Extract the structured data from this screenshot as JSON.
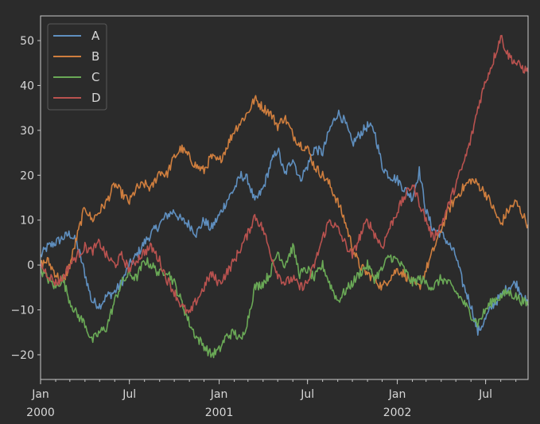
{
  "chart_data": {
    "type": "line",
    "title": "",
    "xlabel": "",
    "ylabel": "",
    "grid": false,
    "legend_position": "top-left",
    "x_range": [
      "2000-01-01",
      "2002-09-26"
    ],
    "ylim": [
      -25.5,
      55.5
    ],
    "y_ticks": [
      -20,
      -10,
      0,
      10,
      20,
      30,
      40,
      50
    ],
    "y_tick_labels": [
      "−20",
      "−10",
      "0",
      "10",
      "20",
      "30",
      "40",
      "50"
    ],
    "x_ticks_major": [
      {
        "date": "2000-01-01",
        "label": "Jan",
        "sub": "2000"
      },
      {
        "date": "2000-07-01",
        "label": "Jul",
        "sub": ""
      },
      {
        "date": "2001-01-01",
        "label": "Jan",
        "sub": "2001"
      },
      {
        "date": "2001-07-01",
        "label": "Jul",
        "sub": ""
      },
      {
        "date": "2002-01-01",
        "label": "Jan",
        "sub": "2002"
      },
      {
        "date": "2002-07-01",
        "label": "Jul",
        "sub": ""
      }
    ],
    "series": [
      {
        "name": "A",
        "color": "#5f8fbf",
        "points": [
          [
            "2000-01-01",
            2
          ],
          [
            "2000-01-15",
            4
          ],
          [
            "2000-02-01",
            5
          ],
          [
            "2000-02-15",
            6
          ],
          [
            "2000-03-01",
            7
          ],
          [
            "2000-03-15",
            5
          ],
          [
            "2000-04-01",
            -2
          ],
          [
            "2000-04-15",
            -8
          ],
          [
            "2000-05-01",
            -9
          ],
          [
            "2000-05-15",
            -7
          ],
          [
            "2000-06-01",
            -6
          ],
          [
            "2000-06-15",
            -4
          ],
          [
            "2000-07-01",
            0
          ],
          [
            "2000-07-15",
            2
          ],
          [
            "2000-08-01",
            5
          ],
          [
            "2000-08-15",
            7
          ],
          [
            "2000-09-01",
            9
          ],
          [
            "2000-09-15",
            11
          ],
          [
            "2000-10-01",
            12
          ],
          [
            "2000-10-15",
            10
          ],
          [
            "2000-11-01",
            9
          ],
          [
            "2000-11-15",
            7
          ],
          [
            "2000-12-01",
            10
          ],
          [
            "2000-12-15",
            8
          ],
          [
            "2001-01-01",
            11
          ],
          [
            "2001-01-15",
            14
          ],
          [
            "2001-02-01",
            17
          ],
          [
            "2001-02-15",
            20
          ],
          [
            "2001-03-01",
            19
          ],
          [
            "2001-03-15",
            14
          ],
          [
            "2001-04-01",
            17
          ],
          [
            "2001-04-15",
            22
          ],
          [
            "2001-05-01",
            26
          ],
          [
            "2001-05-15",
            20
          ],
          [
            "2001-06-01",
            24
          ],
          [
            "2001-06-15",
            19
          ],
          [
            "2001-07-01",
            22
          ],
          [
            "2001-07-15",
            26
          ],
          [
            "2001-08-01",
            25
          ],
          [
            "2001-08-15",
            30
          ],
          [
            "2001-09-01",
            34
          ],
          [
            "2001-09-15",
            32
          ],
          [
            "2001-10-01",
            27
          ],
          [
            "2001-10-15",
            29
          ],
          [
            "2001-11-01",
            31
          ],
          [
            "2001-11-15",
            30
          ],
          [
            "2001-12-01",
            22
          ],
          [
            "2001-12-15",
            20
          ],
          [
            "2002-01-01",
            19
          ],
          [
            "2002-01-15",
            17
          ],
          [
            "2002-02-01",
            15
          ],
          [
            "2002-02-15",
            21
          ],
          [
            "2002-03-01",
            12
          ],
          [
            "2002-03-15",
            8
          ],
          [
            "2002-04-01",
            7
          ],
          [
            "2002-04-15",
            5
          ],
          [
            "2002-05-01",
            2
          ],
          [
            "2002-05-15",
            -4
          ],
          [
            "2002-06-01",
            -9
          ],
          [
            "2002-06-15",
            -15
          ],
          [
            "2002-07-01",
            -12
          ],
          [
            "2002-07-15",
            -9
          ],
          [
            "2002-08-01",
            -7
          ],
          [
            "2002-08-15",
            -5
          ],
          [
            "2002-09-01",
            -4
          ],
          [
            "2002-09-26",
            -9
          ]
        ]
      },
      {
        "name": "B",
        "color": "#cf7e3e",
        "points": [
          [
            "2000-01-01",
            0
          ],
          [
            "2000-01-15",
            1
          ],
          [
            "2000-02-01",
            -2
          ],
          [
            "2000-02-15",
            -4
          ],
          [
            "2000-03-01",
            0
          ],
          [
            "2000-03-15",
            6
          ],
          [
            "2000-04-01",
            13
          ],
          [
            "2000-04-15",
            10
          ],
          [
            "2000-05-01",
            12
          ],
          [
            "2000-05-15",
            14
          ],
          [
            "2000-06-01",
            18
          ],
          [
            "2000-06-15",
            16
          ],
          [
            "2000-07-01",
            14
          ],
          [
            "2000-07-15",
            17
          ],
          [
            "2000-08-01",
            18
          ],
          [
            "2000-08-15",
            17
          ],
          [
            "2000-09-01",
            21
          ],
          [
            "2000-09-15",
            20
          ],
          [
            "2000-10-01",
            24
          ],
          [
            "2000-10-15",
            26
          ],
          [
            "2000-11-01",
            24
          ],
          [
            "2000-11-15",
            22
          ],
          [
            "2000-12-01",
            21
          ],
          [
            "2000-12-15",
            24
          ],
          [
            "2001-01-01",
            23
          ],
          [
            "2001-01-15",
            26
          ],
          [
            "2001-02-01",
            30
          ],
          [
            "2001-02-15",
            32
          ],
          [
            "2001-03-01",
            34
          ],
          [
            "2001-03-15",
            37
          ],
          [
            "2001-04-01",
            35
          ],
          [
            "2001-04-15",
            34
          ],
          [
            "2001-05-01",
            31
          ],
          [
            "2001-05-15",
            33
          ],
          [
            "2001-06-01",
            29
          ],
          [
            "2001-06-15",
            27
          ],
          [
            "2001-07-01",
            26
          ],
          [
            "2001-07-15",
            22
          ],
          [
            "2001-08-01",
            20
          ],
          [
            "2001-08-15",
            18
          ],
          [
            "2001-09-01",
            14
          ],
          [
            "2001-09-15",
            10
          ],
          [
            "2001-10-01",
            4
          ],
          [
            "2001-10-15",
            0
          ],
          [
            "2001-11-01",
            -2
          ],
          [
            "2001-11-15",
            -3
          ],
          [
            "2001-12-01",
            -5
          ],
          [
            "2001-12-15",
            -3
          ],
          [
            "2002-01-01",
            -1
          ],
          [
            "2002-01-15",
            -2
          ],
          [
            "2002-02-01",
            -4
          ],
          [
            "2002-02-15",
            -5
          ],
          [
            "2002-03-01",
            -1
          ],
          [
            "2002-03-15",
            3
          ],
          [
            "2002-04-01",
            8
          ],
          [
            "2002-04-15",
            12
          ],
          [
            "2002-05-01",
            15
          ],
          [
            "2002-05-15",
            17
          ],
          [
            "2002-06-01",
            19
          ],
          [
            "2002-06-15",
            18
          ],
          [
            "2002-07-01",
            16
          ],
          [
            "2002-07-15",
            13
          ],
          [
            "2002-08-01",
            9
          ],
          [
            "2002-08-15",
            12
          ],
          [
            "2002-09-01",
            14
          ],
          [
            "2002-09-26",
            9
          ]
        ]
      },
      {
        "name": "C",
        "color": "#6aa956",
        "points": [
          [
            "2000-01-01",
            -1
          ],
          [
            "2000-01-15",
            -3
          ],
          [
            "2000-02-01",
            -5
          ],
          [
            "2000-02-15",
            -3
          ],
          [
            "2000-03-01",
            -8
          ],
          [
            "2000-03-15",
            -11
          ],
          [
            "2000-04-01",
            -13
          ],
          [
            "2000-04-15",
            -17
          ],
          [
            "2000-05-01",
            -15
          ],
          [
            "2000-05-15",
            -14
          ],
          [
            "2000-06-01",
            -8
          ],
          [
            "2000-06-15",
            -4
          ],
          [
            "2000-07-01",
            -2
          ],
          [
            "2000-07-15",
            -3
          ],
          [
            "2000-08-01",
            1
          ],
          [
            "2000-08-15",
            0
          ],
          [
            "2000-09-01",
            -2
          ],
          [
            "2000-09-15",
            -1
          ],
          [
            "2000-10-01",
            -4
          ],
          [
            "2000-10-15",
            -8
          ],
          [
            "2000-11-01",
            -13
          ],
          [
            "2000-11-15",
            -16
          ],
          [
            "2000-12-01",
            -18
          ],
          [
            "2000-12-15",
            -20
          ],
          [
            "2001-01-01",
            -19
          ],
          [
            "2001-01-15",
            -16
          ],
          [
            "2001-02-01",
            -15
          ],
          [
            "2001-02-15",
            -17
          ],
          [
            "2001-03-01",
            -12
          ],
          [
            "2001-03-15",
            -5
          ],
          [
            "2001-04-01",
            -4
          ],
          [
            "2001-04-15",
            -2
          ],
          [
            "2001-05-01",
            3
          ],
          [
            "2001-05-15",
            0
          ],
          [
            "2001-06-01",
            4
          ],
          [
            "2001-06-15",
            -2
          ],
          [
            "2001-07-01",
            -1
          ],
          [
            "2001-07-15",
            -3
          ],
          [
            "2001-08-01",
            0
          ],
          [
            "2001-08-15",
            -4
          ],
          [
            "2001-09-01",
            -8
          ],
          [
            "2001-09-15",
            -6
          ],
          [
            "2001-10-01",
            -4
          ],
          [
            "2001-10-15",
            -2
          ],
          [
            "2001-11-01",
            0
          ],
          [
            "2001-11-15",
            -3
          ],
          [
            "2001-12-01",
            -1
          ],
          [
            "2001-12-15",
            2
          ],
          [
            "2002-01-01",
            1
          ],
          [
            "2002-01-15",
            -1
          ],
          [
            "2002-02-01",
            -4
          ],
          [
            "2002-02-15",
            -3
          ],
          [
            "2002-03-01",
            -4
          ],
          [
            "2002-03-15",
            -5
          ],
          [
            "2002-04-01",
            -3
          ],
          [
            "2002-04-15",
            -4
          ],
          [
            "2002-05-01",
            -6
          ],
          [
            "2002-05-15",
            -8
          ],
          [
            "2002-06-01",
            -11
          ],
          [
            "2002-06-15",
            -13
          ],
          [
            "2002-07-01",
            -10
          ],
          [
            "2002-07-15",
            -8
          ],
          [
            "2002-08-01",
            -7
          ],
          [
            "2002-08-15",
            -6
          ],
          [
            "2002-09-01",
            -7
          ],
          [
            "2002-09-26",
            -9
          ]
        ]
      },
      {
        "name": "D",
        "color": "#b9524f",
        "points": [
          [
            "2000-01-01",
            0
          ],
          [
            "2000-01-15",
            -2
          ],
          [
            "2000-02-01",
            -4
          ],
          [
            "2000-02-15",
            -3
          ],
          [
            "2000-03-01",
            0
          ],
          [
            "2000-03-15",
            2
          ],
          [
            "2000-04-01",
            4
          ],
          [
            "2000-04-15",
            3
          ],
          [
            "2000-05-01",
            5
          ],
          [
            "2000-05-15",
            2
          ],
          [
            "2000-06-01",
            0
          ],
          [
            "2000-06-15",
            2
          ],
          [
            "2000-07-01",
            -1
          ],
          [
            "2000-07-15",
            1
          ],
          [
            "2000-08-01",
            3
          ],
          [
            "2000-08-15",
            4
          ],
          [
            "2000-09-01",
            1
          ],
          [
            "2000-09-15",
            -3
          ],
          [
            "2000-10-01",
            -6
          ],
          [
            "2000-10-15",
            -9
          ],
          [
            "2000-11-01",
            -11
          ],
          [
            "2000-11-15",
            -8
          ],
          [
            "2000-12-01",
            -5
          ],
          [
            "2000-12-15",
            -2
          ],
          [
            "2001-01-01",
            -4
          ],
          [
            "2001-01-15",
            -2
          ],
          [
            "2001-02-01",
            1
          ],
          [
            "2001-02-15",
            4
          ],
          [
            "2001-03-01",
            7
          ],
          [
            "2001-03-15",
            11
          ],
          [
            "2001-04-01",
            8
          ],
          [
            "2001-04-15",
            3
          ],
          [
            "2001-05-01",
            -2
          ],
          [
            "2001-05-15",
            -4
          ],
          [
            "2001-06-01",
            -3
          ],
          [
            "2001-06-15",
            -5
          ],
          [
            "2001-07-01",
            -4
          ],
          [
            "2001-07-15",
            0
          ],
          [
            "2001-08-01",
            6
          ],
          [
            "2001-08-15",
            10
          ],
          [
            "2001-09-01",
            8
          ],
          [
            "2001-09-15",
            5
          ],
          [
            "2001-10-01",
            2
          ],
          [
            "2001-10-15",
            6
          ],
          [
            "2001-11-01",
            10
          ],
          [
            "2001-11-15",
            7
          ],
          [
            "2001-12-01",
            4
          ],
          [
            "2001-12-15",
            8
          ],
          [
            "2002-01-01",
            12
          ],
          [
            "2002-01-15",
            15
          ],
          [
            "2002-02-01",
            18
          ],
          [
            "2002-02-15",
            14
          ],
          [
            "2002-03-01",
            10
          ],
          [
            "2002-03-15",
            6
          ],
          [
            "2002-04-01",
            9
          ],
          [
            "2002-04-15",
            13
          ],
          [
            "2002-05-01",
            18
          ],
          [
            "2002-05-15",
            22
          ],
          [
            "2002-06-01",
            28
          ],
          [
            "2002-06-15",
            35
          ],
          [
            "2002-07-01",
            41
          ],
          [
            "2002-07-15",
            45
          ],
          [
            "2002-08-01",
            51
          ],
          [
            "2002-08-15",
            47
          ],
          [
            "2002-09-01",
            45
          ],
          [
            "2002-09-26",
            43
          ]
        ]
      }
    ]
  },
  "colors": {
    "background": "#2b2b2b",
    "axes_edge": "#c8c8c8",
    "tick_text": "#d6d6d6",
    "legend_bg": "#2b2b2b",
    "legend_edge": "#5a5a5a"
  }
}
